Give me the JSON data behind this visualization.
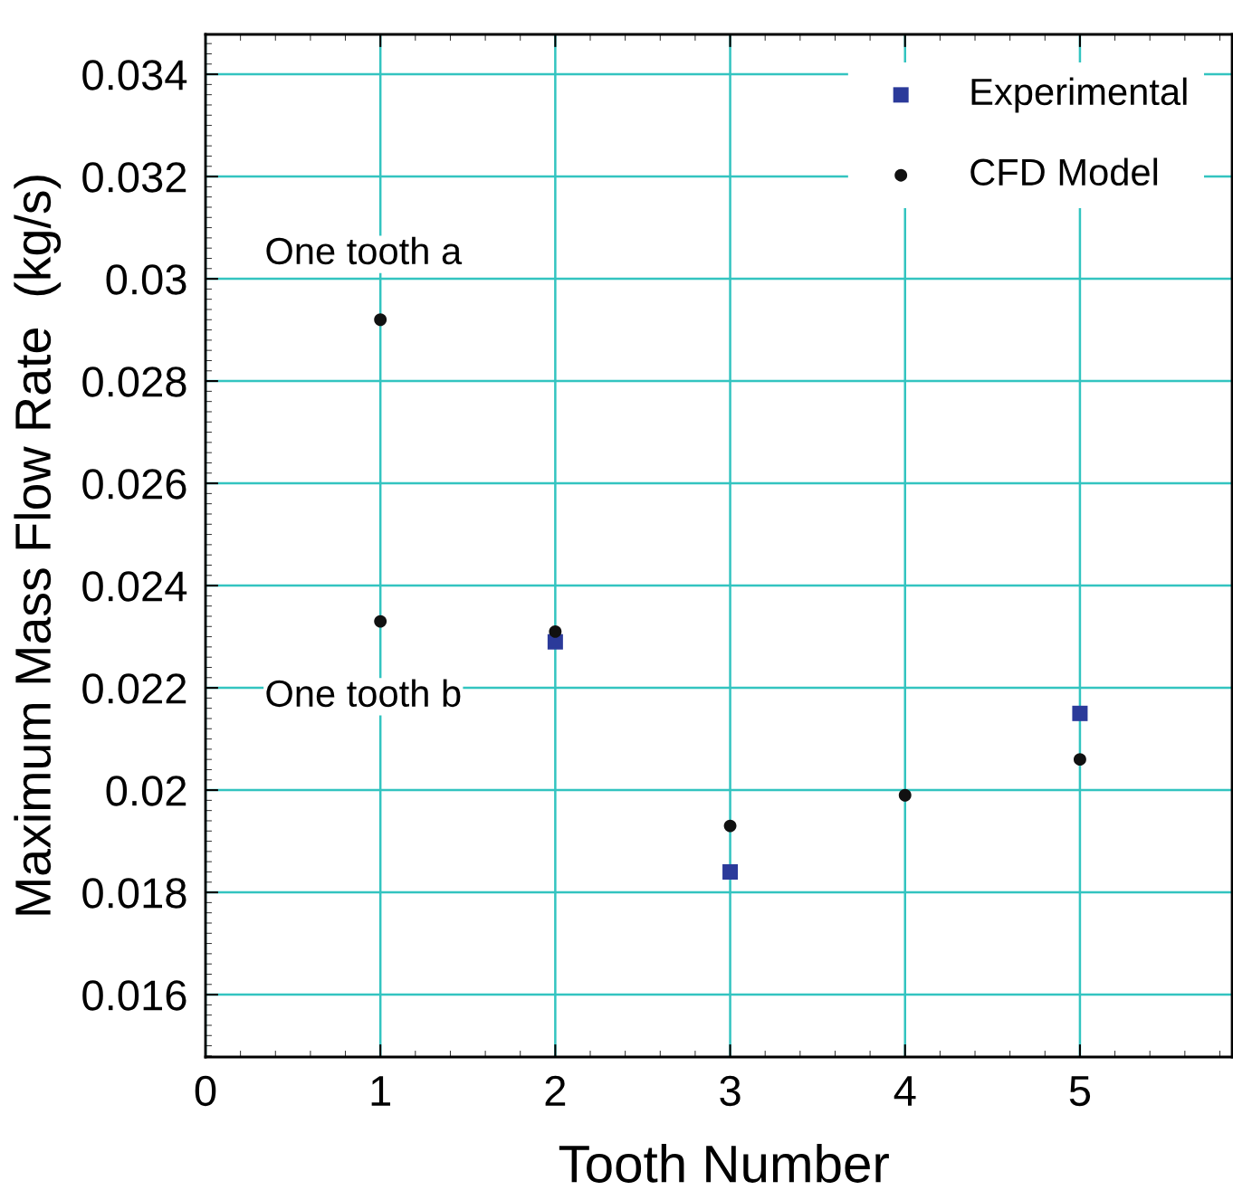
{
  "chart_data": {
    "type": "scatter",
    "xlabel": "Tooth Number",
    "ylabel": "Maximum Mass Flow Rate  (kg/s)",
    "xlim": [
      0,
      5.87
    ],
    "xticks": [
      0,
      1,
      2,
      3,
      4,
      5
    ],
    "ylim": [
      0.01478,
      0.03478
    ],
    "yticks": [
      0.016,
      0.018,
      0.02,
      0.022,
      0.024,
      0.026,
      0.028,
      0.03,
      0.032,
      0.034
    ],
    "grid": true,
    "legend": "top right",
    "series": [
      {
        "name": "Experimental",
        "color": "#2b3a9a",
        "marker": "square",
        "x": [
          2,
          3,
          5
        ],
        "values": [
          0.0229,
          0.0184,
          0.0215
        ]
      },
      {
        "name": "CFD Model",
        "color": "#111111",
        "marker": "circle",
        "x": [
          1,
          1,
          2,
          3,
          4,
          5
        ],
        "values": [
          0.0292,
          0.0233,
          0.0231,
          0.0193,
          0.0199,
          0.0206
        ]
      }
    ],
    "annotations": [
      {
        "text": "One tooth a",
        "x": 1,
        "y": 0.0292
      },
      {
        "text": "One tooth b",
        "x": 1,
        "y": 0.0233
      }
    ]
  }
}
